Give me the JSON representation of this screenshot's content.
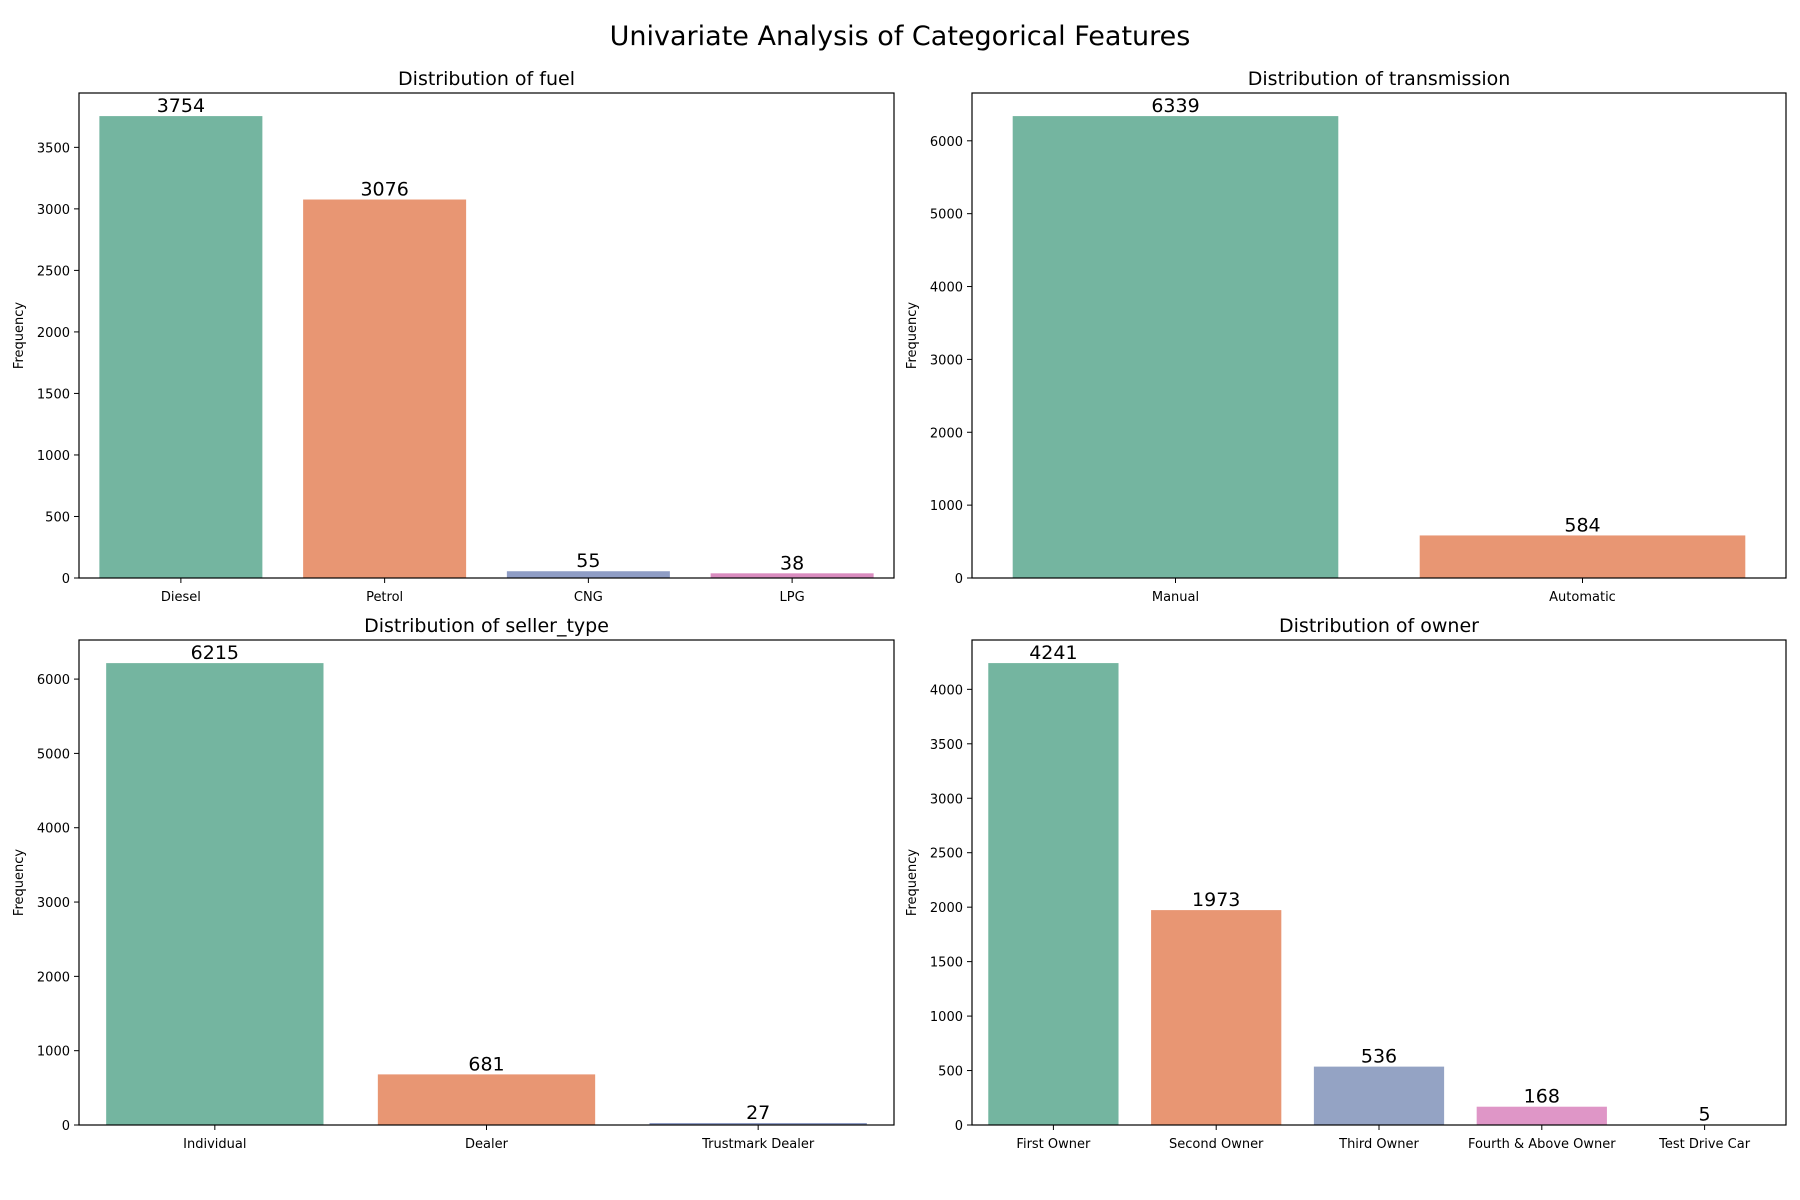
{
  "figure": {
    "suptitle": "Univariate Analysis of Categorical Features"
  },
  "chart_data": [
    {
      "type": "bar",
      "title": "Distribution of fuel",
      "xlabel": "",
      "ylabel": "Frequency",
      "categories": [
        "Diesel",
        "Petrol",
        "CNG",
        "LPG"
      ],
      "values": [
        3754,
        3076,
        55,
        38
      ],
      "colors": [
        "#74b5a0",
        "#e89673",
        "#8f9dc5",
        "#d98cbf"
      ],
      "ylim": [
        0,
        3941.7
      ],
      "yticks": [
        0,
        500,
        1000,
        1500,
        2000,
        2500,
        3000,
        3500
      ],
      "grid": false
    },
    {
      "type": "bar",
      "title": "Distribution of transmission",
      "xlabel": "",
      "ylabel": "Frequency",
      "categories": [
        "Manual",
        "Automatic"
      ],
      "values": [
        6339,
        584
      ],
      "colors": [
        "#74b5a0",
        "#e89673"
      ],
      "ylim": [
        0,
        6656
      ],
      "yticks": [
        0,
        1000,
        2000,
        3000,
        4000,
        5000,
        6000
      ],
      "grid": false
    },
    {
      "type": "bar",
      "title": "Distribution of seller_type",
      "xlabel": "",
      "ylabel": "Frequency",
      "categories": [
        "Individual",
        "Dealer",
        "Trustmark Dealer"
      ],
      "values": [
        6215,
        681,
        27
      ],
      "colors": [
        "#74b5a0",
        "#e89673",
        "#8f9dc5"
      ],
      "ylim": [
        0,
        6526
      ],
      "yticks": [
        0,
        1000,
        2000,
        3000,
        4000,
        5000,
        6000
      ],
      "grid": false
    },
    {
      "type": "bar",
      "title": "Distribution of owner",
      "xlabel": "",
      "ylabel": "Frequency",
      "categories": [
        "First Owner",
        "Second Owner",
        "Third Owner",
        "Fourth & Above Owner",
        "Test Drive Car"
      ],
      "values": [
        4241,
        1973,
        536,
        168,
        5
      ],
      "colors": [
        "#74b5a0",
        "#e89673",
        "#94a3c4",
        "#df96c7",
        "#a6d95a"
      ],
      "ylim": [
        0,
        4453
      ],
      "yticks": [
        0,
        500,
        1000,
        1500,
        2000,
        2500,
        3000,
        3500,
        4000
      ],
      "grid": false
    }
  ]
}
